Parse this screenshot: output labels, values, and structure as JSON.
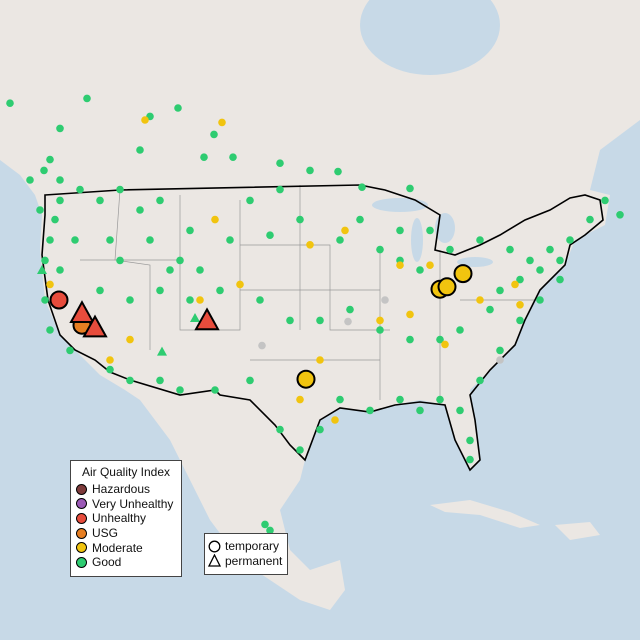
{
  "legend": {
    "title": "Air Quality Index",
    "items": [
      {
        "label": "Hazardous",
        "color": "#7e3b3b"
      },
      {
        "label": "Very Unhealthy",
        "color": "#9b59b6"
      },
      {
        "label": "Unhealthy",
        "color": "#e74c3c"
      },
      {
        "label": "USG",
        "color": "#e67e22"
      },
      {
        "label": "Moderate",
        "color": "#f1c40f"
      },
      {
        "label": "Good",
        "color": "#2ecc71"
      }
    ]
  },
  "shape_legend": {
    "temporary": "temporary",
    "permanent": "permanent"
  },
  "colors": {
    "ocean": "#c7d9e7",
    "land": "#ebe7e3",
    "no_data": "#c4c4c4"
  },
  "monitors": {
    "Good": {
      "temporary": [
        [
          -128,
          55.4
        ],
        [
          -120.3,
          55.8
        ],
        [
          -123,
          53.3
        ],
        [
          -114,
          54.3
        ],
        [
          -111.2,
          55
        ],
        [
          -107.6,
          52.8
        ],
        [
          -108.6,
          50.9
        ],
        [
          -105.7,
          50.9
        ],
        [
          -101,
          50.4
        ],
        [
          -98,
          49.8
        ],
        [
          -95.2,
          49.7
        ],
        [
          -92.8,
          48.4
        ],
        [
          -88,
          48.3
        ],
        [
          -124.6,
          49.8
        ],
        [
          -123,
          49
        ],
        [
          -121,
          48.2
        ],
        [
          -119,
          47.3
        ],
        [
          -117,
          48.2
        ],
        [
          -115,
          46.5
        ],
        [
          -113,
          47.3
        ],
        [
          -123.5,
          45.7
        ],
        [
          -121.5,
          44
        ],
        [
          -118,
          44
        ],
        [
          -114,
          44
        ],
        [
          -110,
          44.8
        ],
        [
          -106,
          44
        ],
        [
          -102,
          44.4
        ],
        [
          -99,
          45.7
        ],
        [
          -95,
          44
        ],
        [
          -93,
          45.7
        ],
        [
          -91,
          43.2
        ],
        [
          -89,
          42.3
        ],
        [
          -87,
          41.5
        ],
        [
          -81,
          44
        ],
        [
          -78,
          43.2
        ],
        [
          -76,
          42.3
        ],
        [
          -74,
          43.2
        ],
        [
          -72,
          44
        ],
        [
          -70,
          45.7
        ],
        [
          -68.5,
          47.3
        ],
        [
          -67,
          46.1
        ],
        [
          -73,
          40.7
        ],
        [
          -75,
          39
        ],
        [
          -77,
          37.3
        ],
        [
          -79,
          34.8
        ],
        [
          -81,
          32.3
        ],
        [
          -83,
          29.8
        ],
        [
          -82,
          27.3
        ],
        [
          -82,
          25.7
        ],
        [
          -85,
          30.7
        ],
        [
          -87,
          29.8
        ],
        [
          -89,
          30.7
        ],
        [
          -92,
          29.8
        ],
        [
          -95,
          30.7
        ],
        [
          -97,
          28.2
        ],
        [
          -99,
          26.5
        ],
        [
          -101,
          28.2
        ],
        [
          -104,
          32.3
        ],
        [
          -107.5,
          31.5
        ],
        [
          -111,
          31.5
        ],
        [
          -113,
          32.3
        ],
        [
          -116,
          32.3
        ],
        [
          -118,
          33.2
        ],
        [
          -122,
          34.8
        ],
        [
          -124,
          36.5
        ],
        [
          -124.5,
          39
        ],
        [
          -124.5,
          42.3
        ],
        [
          -124,
          44
        ],
        [
          -123,
          41.5
        ],
        [
          -119,
          39.8
        ],
        [
          -116,
          39
        ],
        [
          -113,
          39.8
        ],
        [
          -110,
          39
        ],
        [
          -107,
          39.8
        ],
        [
          -103,
          39
        ],
        [
          -100,
          37.3
        ],
        [
          -97,
          37.3
        ],
        [
          -94,
          38.2
        ],
        [
          -91,
          36.5
        ],
        [
          -88,
          35.7
        ],
        [
          -85,
          35.7
        ],
        [
          -83,
          36.5
        ],
        [
          -80,
          38.2
        ],
        [
          -79,
          39.8
        ],
        [
          -77,
          40.7
        ],
        [
          -75,
          41.5
        ],
        [
          -73,
          42.3
        ],
        [
          -86,
          44.8
        ],
        [
          -84,
          43.2
        ],
        [
          -89,
          44.8
        ],
        [
          -101,
          48.2
        ],
        [
          -104,
          47.3
        ],
        [
          -111,
          42.3
        ],
        [
          -117,
          42.3
        ],
        [
          -102.5,
          20.3
        ],
        [
          -102,
          19.8
        ],
        [
          -112,
          41.5
        ],
        [
          -109,
          41.5
        ],
        [
          -123,
          47.3
        ],
        [
          -125,
          46.5
        ],
        [
          -126,
          49
        ],
        [
          -124,
          50.7
        ],
        [
          -115,
          51.5
        ]
      ],
      "permanent": [
        [
          -124.8,
          41.5
        ],
        [
          -112.8,
          34.7
        ],
        [
          -109.5,
          37.5
        ]
      ]
    },
    "Moderate": {
      "temporary": [
        [
          -114.5,
          54
        ],
        [
          -106.8,
          53.8
        ],
        [
          -107.5,
          45.7
        ],
        [
          -105,
          40.3
        ],
        [
          -98,
          43.6
        ],
        [
          -94.5,
          44.8
        ],
        [
          -89,
          41.9
        ],
        [
          -86,
          41.9
        ],
        [
          -91,
          37.3
        ],
        [
          -88,
          37.8
        ],
        [
          -84.5,
          35.3
        ],
        [
          -99,
          30.7
        ],
        [
          -97,
          34
        ],
        [
          -118,
          34
        ],
        [
          -116,
          35.7
        ],
        [
          -81,
          39
        ],
        [
          -77.5,
          40.3
        ],
        [
          -124,
          40.3
        ],
        [
          -109,
          39
        ],
        [
          -95.5,
          29
        ],
        [
          -77,
          38.6
        ]
      ],
      "highlighted_temporary": [
        [
          -98.4,
          32.4
        ],
        [
          -85,
          39.9
        ],
        [
          -84.3,
          40.1
        ],
        [
          -82.7,
          41.2
        ]
      ]
    },
    "USG": {
      "highlighted_temporary": [
        [
          -120.8,
          36.9
        ]
      ]
    },
    "Unhealthy": {
      "highlighted_temporary": [
        [
          -123.1,
          39
        ]
      ],
      "highlighted_permanent": [
        [
          -120.8,
          37.9
        ],
        [
          -119.5,
          36.7
        ],
        [
          -108.3,
          37.3
        ]
      ]
    },
    "No data": {
      "temporary": [
        [
          -94.2,
          37.2
        ],
        [
          -102.8,
          35.2
        ],
        [
          -90.5,
          39
        ],
        [
          -79,
          34
        ]
      ]
    }
  }
}
